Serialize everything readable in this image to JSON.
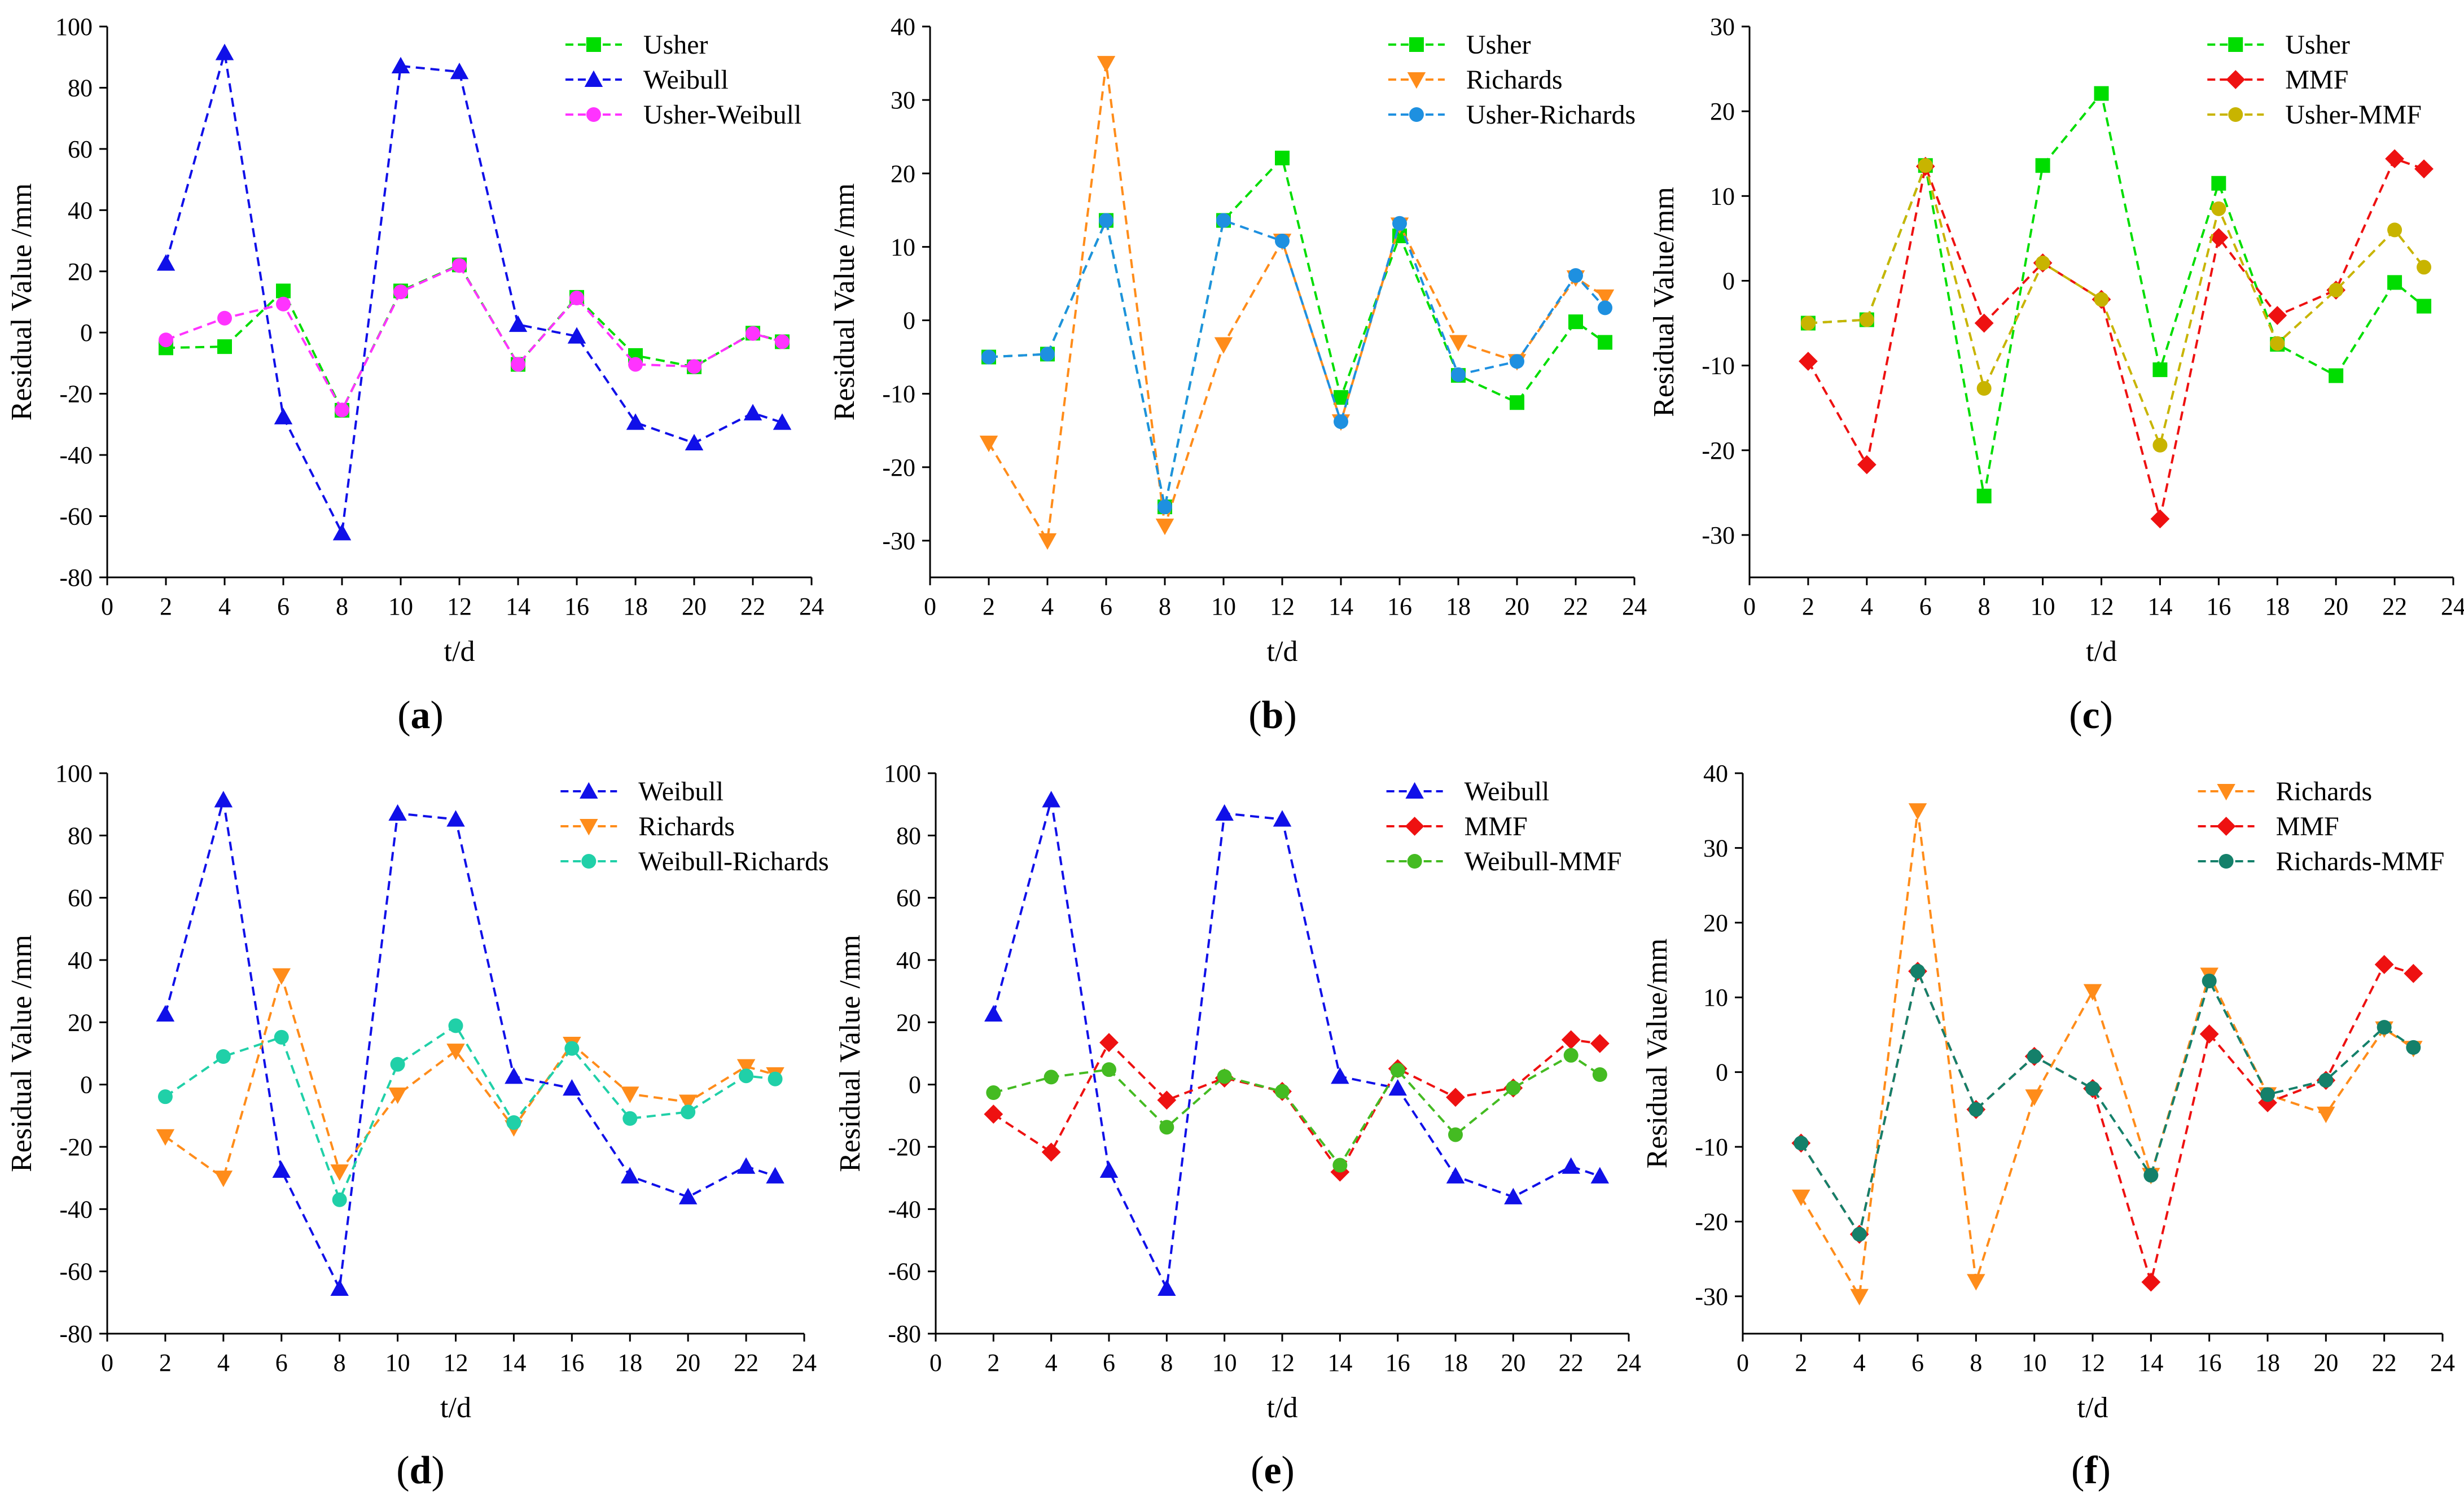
{
  "figure": {
    "panels": [
      {
        "label_open": "(",
        "label_letter": "a",
        "label_close": ")"
      },
      {
        "label_open": "(",
        "label_letter": "b",
        "label_close": ")"
      },
      {
        "label_open": "(",
        "label_letter": "c",
        "label_close": ")"
      },
      {
        "label_open": "(",
        "label_letter": "d",
        "label_close": ")"
      },
      {
        "label_open": "(",
        "label_letter": "e",
        "label_close": ")"
      },
      {
        "label_open": "(",
        "label_letter": "f",
        "label_close": ")"
      }
    ]
  },
  "chart_data": [
    {
      "type": "line",
      "title": "",
      "xlabel": "t/d",
      "ylabel": "Residual Value /mm",
      "xlim": [
        0,
        24
      ],
      "ylim": [
        -80,
        100
      ],
      "xticks": [
        0,
        2,
        4,
        6,
        8,
        10,
        12,
        14,
        16,
        18,
        20,
        22,
        24
      ],
      "yticks": [
        -80,
        -60,
        -40,
        -20,
        0,
        20,
        40,
        60,
        80,
        100
      ],
      "legend_position": "top-right",
      "x": [
        2,
        4,
        6,
        8,
        10,
        12,
        14,
        16,
        18,
        20,
        22,
        23
      ],
      "series": [
        {
          "name": "Usher",
          "color": "#00dd00",
          "marker": "square",
          "values": [
            -5,
            -4.6,
            13.6,
            -25.4,
            13.6,
            22.1,
            -10.4,
            11.5,
            -7.5,
            -11.2,
            -0.2,
            -3
          ]
        },
        {
          "name": "Weibull",
          "color": "#1010e8",
          "marker": "triangle-up",
          "values": [
            22.6,
            91.4,
            -27.6,
            -65.5,
            87.1,
            85.2,
            2.6,
            -1.2,
            -29.4,
            -36.1,
            -26.3,
            -29.4
          ]
        },
        {
          "name": "Usher-Weibull",
          "color": "#ff33ff",
          "marker": "circle",
          "values": [
            -2.4,
            4.7,
            9.3,
            -25.3,
            13.3,
            21.9,
            -10.4,
            11.3,
            -10.4,
            -11.1,
            -0.3,
            -3
          ]
        }
      ]
    },
    {
      "type": "line",
      "title": "",
      "xlabel": "t/d",
      "ylabel": "Residual Value /mm",
      "xlim": [
        0,
        24
      ],
      "ylim": [
        -35,
        40
      ],
      "xticks": [
        0,
        2,
        4,
        6,
        8,
        10,
        12,
        14,
        16,
        18,
        20,
        22,
        24
      ],
      "yticks": [
        -30,
        -20,
        -10,
        0,
        10,
        20,
        30,
        40
      ],
      "legend_position": "top-right",
      "x": [
        2,
        4,
        6,
        8,
        10,
        12,
        14,
        16,
        18,
        20,
        22,
        23
      ],
      "series": [
        {
          "name": "Usher",
          "color": "#00dd00",
          "marker": "square",
          "values": [
            -5,
            -4.6,
            13.6,
            -25.4,
            13.6,
            22.1,
            -10.5,
            11.5,
            -7.5,
            -11.2,
            -0.2,
            -3
          ]
        },
        {
          "name": "Richards",
          "color": "#ff8c1a",
          "marker": "triangle-down",
          "values": [
            -16.7,
            -30,
            35,
            -28,
            -3.3,
            10.8,
            -13.8,
            13,
            -3,
            -5.6,
            5.8,
            3.2
          ]
        },
        {
          "name": "Usher-Richards",
          "color": "#1e90e0",
          "marker": "circle",
          "values": [
            -5,
            -4.6,
            13.6,
            -25.4,
            13.6,
            10.8,
            -13.8,
            13.2,
            -7.4,
            -5.6,
            6.1,
            1.7
          ]
        }
      ]
    },
    {
      "type": "line",
      "title": "",
      "xlabel": "t/d",
      "ylabel": "Residual Value/mm",
      "xlim": [
        0,
        24
      ],
      "ylim": [
        -35,
        30
      ],
      "xticks": [
        0,
        2,
        4,
        6,
        8,
        10,
        12,
        14,
        16,
        18,
        20,
        22,
        24
      ],
      "yticks": [
        -30,
        -20,
        -10,
        0,
        10,
        20,
        30
      ],
      "legend_position": "top-right",
      "x": [
        2,
        4,
        6,
        8,
        10,
        12,
        14,
        16,
        18,
        20,
        22,
        23
      ],
      "series": [
        {
          "name": "Usher",
          "color": "#00dd00",
          "marker": "square",
          "values": [
            -5,
            -4.6,
            13.6,
            -25.4,
            13.6,
            22.1,
            -10.5,
            11.5,
            -7.5,
            -11.2,
            -0.2,
            -3
          ]
        },
        {
          "name": "MMF",
          "color": "#ee1111",
          "marker": "diamond",
          "values": [
            -9.5,
            -21.7,
            13.5,
            -5,
            2.1,
            -2.2,
            -28.1,
            5.1,
            -4.1,
            -1.1,
            14.4,
            13.2
          ]
        },
        {
          "name": "Usher-MMF",
          "color": "#c8b400",
          "marker": "circle",
          "values": [
            -5,
            -4.6,
            13.6,
            -12.7,
            2.1,
            -2.2,
            -19.4,
            8.5,
            -7.4,
            -1.1,
            6,
            1.6
          ]
        }
      ]
    },
    {
      "type": "line",
      "title": "",
      "xlabel": "t/d",
      "ylabel": "Residual Value /mm",
      "xlim": [
        0,
        24
      ],
      "ylim": [
        -80,
        100
      ],
      "xticks": [
        0,
        2,
        4,
        6,
        8,
        10,
        12,
        14,
        16,
        18,
        20,
        22,
        24
      ],
      "yticks": [
        -80,
        -60,
        -40,
        -20,
        0,
        20,
        40,
        60,
        80,
        100
      ],
      "legend_position": "top-right",
      "x": [
        2,
        4,
        6,
        8,
        10,
        12,
        14,
        16,
        18,
        20,
        22,
        23
      ],
      "series": [
        {
          "name": "Weibull",
          "color": "#1010e8",
          "marker": "triangle-up",
          "values": [
            22.6,
            91.4,
            -27.6,
            -65.5,
            87.1,
            85.2,
            2.6,
            -1.2,
            -29.4,
            -36.1,
            -26.3,
            -29.4
          ]
        },
        {
          "name": "Richards",
          "color": "#ff8c1a",
          "marker": "triangle-down",
          "values": [
            -16.7,
            -30,
            35,
            -28,
            -3.3,
            10.8,
            -13.8,
            13,
            -3,
            -5.6,
            5.8,
            3.2
          ]
        },
        {
          "name": "Weibull-Richards",
          "color": "#20d0a8",
          "marker": "circle",
          "values": [
            -3.9,
            9,
            15.2,
            -37,
            6.5,
            18.9,
            -12.2,
            11.6,
            -10.9,
            -8.8,
            2.8,
            1.8
          ]
        }
      ]
    },
    {
      "type": "line",
      "title": "",
      "xlabel": "t/d",
      "ylabel": "Residual Value /mm",
      "xlim": [
        0,
        24
      ],
      "ylim": [
        -80,
        100
      ],
      "xticks": [
        0,
        2,
        4,
        6,
        8,
        10,
        12,
        14,
        16,
        18,
        20,
        22,
        24
      ],
      "yticks": [
        -80,
        -60,
        -40,
        -20,
        0,
        20,
        40,
        60,
        80,
        100
      ],
      "legend_position": "top-right",
      "x": [
        2,
        4,
        6,
        8,
        10,
        12,
        14,
        16,
        18,
        20,
        22,
        23
      ],
      "series": [
        {
          "name": "Weibull",
          "color": "#1010e8",
          "marker": "triangle-up",
          "values": [
            22.6,
            91.4,
            -27.6,
            -65.5,
            87.1,
            85.2,
            2.6,
            -1.2,
            -29.4,
            -36.1,
            -26.3,
            -29.4
          ]
        },
        {
          "name": "MMF",
          "color": "#ee1111",
          "marker": "diamond",
          "values": [
            -9.5,
            -21.7,
            13.5,
            -5,
            2.1,
            -2.2,
            -28.1,
            5.1,
            -4.1,
            -1.1,
            14.4,
            13.2
          ]
        },
        {
          "name": "Weibull-MMF",
          "color": "#44bb22",
          "marker": "circle",
          "values": [
            -2.6,
            2.4,
            4.8,
            -13.7,
            2.6,
            -2.2,
            -25.9,
            4.6,
            -16.1,
            -1.1,
            9.4,
            3.2
          ]
        }
      ]
    },
    {
      "type": "line",
      "title": "",
      "xlabel": "t/d",
      "ylabel": "Residual Value/mm",
      "xlim": [
        0,
        24
      ],
      "ylim": [
        -35,
        40
      ],
      "xticks": [
        0,
        2,
        4,
        6,
        8,
        10,
        12,
        14,
        16,
        18,
        20,
        22,
        24
      ],
      "yticks": [
        -30,
        -20,
        -10,
        0,
        10,
        20,
        30,
        40
      ],
      "legend_position": "top-right",
      "x": [
        2,
        4,
        6,
        8,
        10,
        12,
        14,
        16,
        18,
        20,
        22,
        23
      ],
      "series": [
        {
          "name": "Richards",
          "color": "#ff8c1a",
          "marker": "triangle-down",
          "values": [
            -16.7,
            -30,
            35,
            -28,
            -3.3,
            10.8,
            -13.8,
            13,
            -3,
            -5.6,
            5.8,
            3.2
          ]
        },
        {
          "name": "MMF",
          "color": "#ee1111",
          "marker": "diamond",
          "values": [
            -9.5,
            -21.7,
            13.5,
            -5,
            2.1,
            -2.2,
            -28.1,
            5.1,
            -4.1,
            -1.1,
            14.4,
            13.2
          ]
        },
        {
          "name": "Richards-MMF",
          "color": "#14806a",
          "marker": "circle",
          "values": [
            -9.5,
            -21.7,
            13.5,
            -5,
            2.1,
            -2.2,
            -13.8,
            12.2,
            -3,
            -1.1,
            6,
            3.3
          ]
        }
      ]
    }
  ]
}
